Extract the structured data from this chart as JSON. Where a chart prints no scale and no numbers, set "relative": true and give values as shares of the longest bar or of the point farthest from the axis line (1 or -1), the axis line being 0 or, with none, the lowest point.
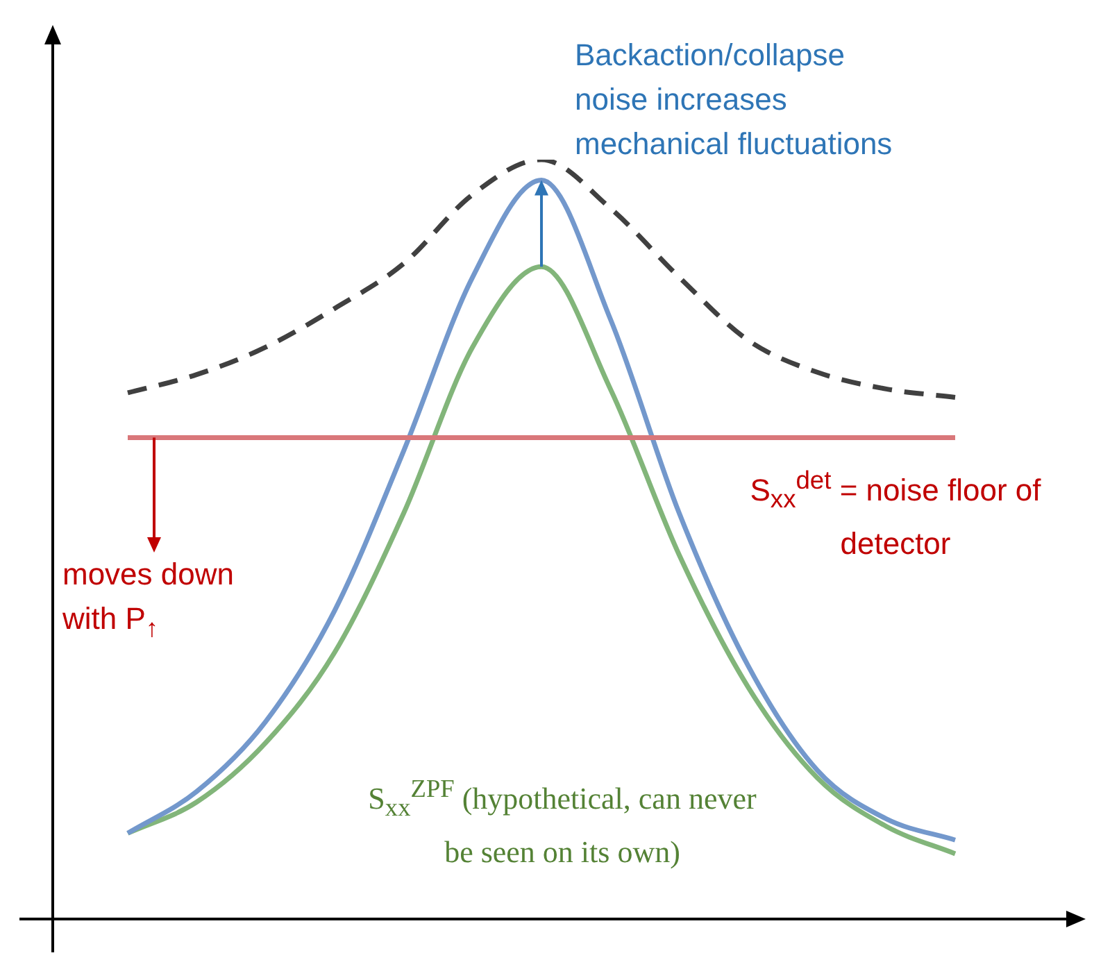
{
  "chart_data": {
    "type": "line",
    "relative": true,
    "marker": "none",
    "categories": [
      null,
      null,
      null,
      null,
      null,
      null,
      null,
      null,
      null,
      null,
      null,
      null,
      null
    ],
    "series": [
      {
        "color": "#404040",
        "line_style": "dashed",
        "values": [
          0.693,
          0.717,
          0.753,
          0.804,
          0.863,
          0.954,
          1.0,
          0.936,
          0.845,
          0.762,
          0.72,
          0.698,
          0.687
        ]
      },
      {
        "color": "#d9777a",
        "line_style": "solid",
        "values": [
          0.634,
          0.634,
          0.634,
          0.634,
          0.634,
          0.634,
          0.634,
          0.634,
          0.634,
          0.634,
          0.634,
          0.634,
          0.634
        ]
      },
      {
        "color": "#7398cc",
        "line_style": "solid",
        "values": [
          0.113,
          0.168,
          0.26,
          0.406,
          0.616,
          0.845,
          0.973,
          0.79,
          0.534,
          0.333,
          0.196,
          0.132,
          0.104
        ]
      },
      {
        "color": "#82b57a",
        "line_style": "solid",
        "values": [
          0.113,
          0.154,
          0.232,
          0.351,
          0.534,
          0.753,
          0.859,
          0.698,
          0.479,
          0.305,
          0.186,
          0.122,
          0.086
        ]
      }
    ],
    "annotations": [
      "Backaction/collapse noise increases mechanical fluctuations",
      "S$_{xx}$$^{det}$ =  noise floor of detector",
      "moves down with P$_{↑}$",
      "S$_{xx}$$^{ZPF}$ (hypothetical, can never be seen on its own)"
    ]
  }
}
